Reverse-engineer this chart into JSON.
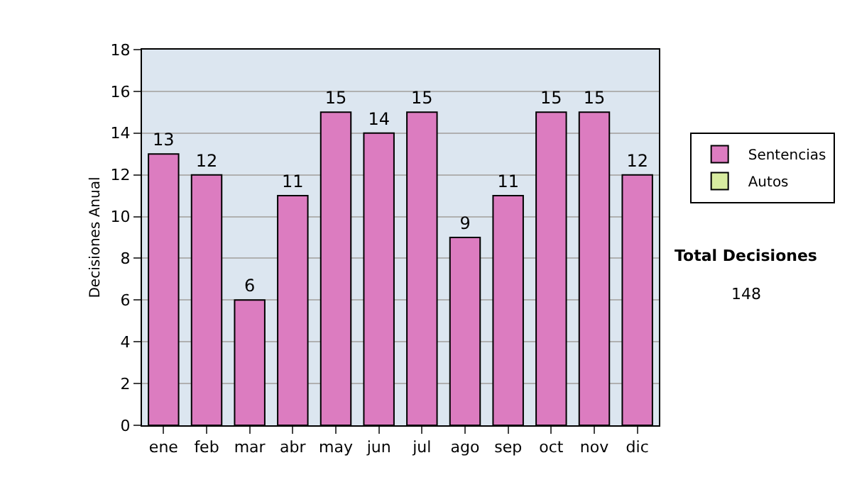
{
  "chart_data": {
    "type": "bar",
    "ylabel": "Decisiones Anual",
    "categories": [
      "ene",
      "feb",
      "mar",
      "abr",
      "may",
      "jun",
      "jul",
      "ago",
      "sep",
      "oct",
      "nov",
      "dic"
    ],
    "series": [
      {
        "name": "Sentencias",
        "color": "#dc7cc0",
        "values": [
          13,
          12,
          6,
          11,
          15,
          14,
          15,
          9,
          11,
          15,
          15,
          12
        ]
      },
      {
        "name": "Autos",
        "color": "#d8eca0",
        "values": [
          null,
          null,
          null,
          null,
          null,
          null,
          null,
          null,
          null,
          null,
          null,
          null
        ]
      }
    ],
    "ylim": [
      0,
      18
    ],
    "yticks": [
      0,
      2,
      4,
      6,
      8,
      10,
      12,
      14,
      16,
      18
    ],
    "grid": "y",
    "legend": "right",
    "data_labels": true,
    "annotations": [
      "Total Decisiones",
      "148"
    ]
  }
}
